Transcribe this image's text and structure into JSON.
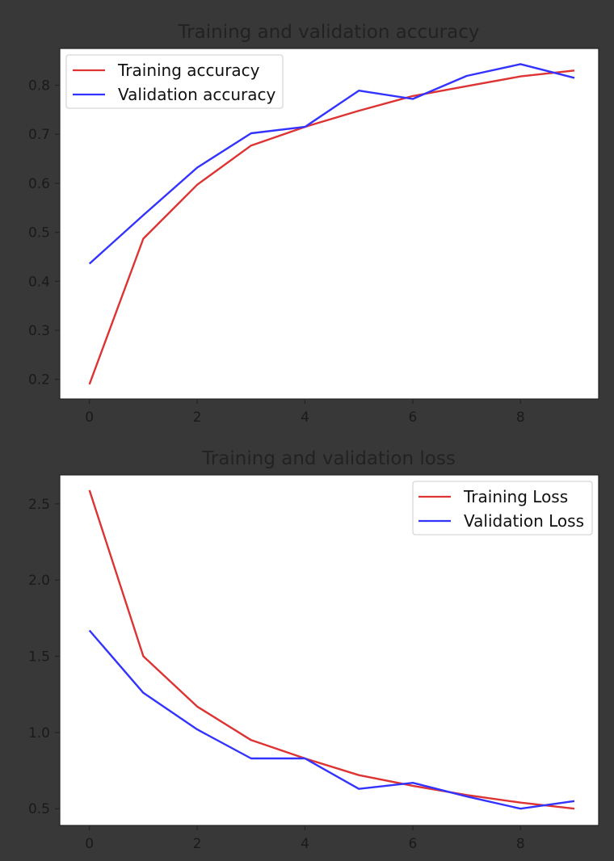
{
  "chart_data": [
    {
      "type": "line",
      "title": "Training and validation accuracy",
      "xlabel": "",
      "ylabel": "",
      "x": [
        0,
        1,
        2,
        3,
        4,
        5,
        6,
        7,
        8,
        9
      ],
      "xlim": [
        -0.55,
        9.45
      ],
      "ylim": [
        0.16,
        0.875
      ],
      "xticks": [
        0,
        2,
        4,
        6,
        8
      ],
      "yticks": [
        0.2,
        0.3,
        0.4,
        0.5,
        0.6,
        0.7,
        0.8
      ],
      "grid": false,
      "legend_position": "upper-left",
      "series": [
        {
          "name": "Training accuracy",
          "color": "#dd3333",
          "values": [
            0.19,
            0.487,
            0.597,
            0.677,
            0.715,
            0.748,
            0.778,
            0.798,
            0.818,
            0.83
          ]
        },
        {
          "name": "Validation accuracy",
          "color": "#3333ff",
          "values": [
            0.436,
            0.535,
            0.632,
            0.702,
            0.715,
            0.789,
            0.772,
            0.819,
            0.843,
            0.815
          ]
        }
      ]
    },
    {
      "type": "line",
      "title": "Training and validation loss",
      "xlabel": "",
      "ylabel": "",
      "x": [
        0,
        1,
        2,
        3,
        4,
        5,
        6,
        7,
        8,
        9
      ],
      "xlim": [
        -0.55,
        9.45
      ],
      "ylim": [
        0.39,
        2.69
      ],
      "xticks": [
        0,
        2,
        4,
        6,
        8
      ],
      "yticks": [
        0.5,
        1.0,
        1.5,
        2.0,
        2.5
      ],
      "ytick_labels": [
        "0.5",
        "1.0",
        "1.5",
        "2.0",
        "2.5"
      ],
      "grid": false,
      "legend_position": "upper-right",
      "series": [
        {
          "name": "Training Loss",
          "color": "#dd3333",
          "values": [
            2.59,
            1.5,
            1.17,
            0.95,
            0.83,
            0.72,
            0.65,
            0.59,
            0.54,
            0.5
          ]
        },
        {
          "name": "Validation Loss",
          "color": "#3333ff",
          "values": [
            1.67,
            1.26,
            1.02,
            0.83,
            0.83,
            0.63,
            0.67,
            0.58,
            0.5,
            0.55
          ]
        }
      ]
    }
  ]
}
